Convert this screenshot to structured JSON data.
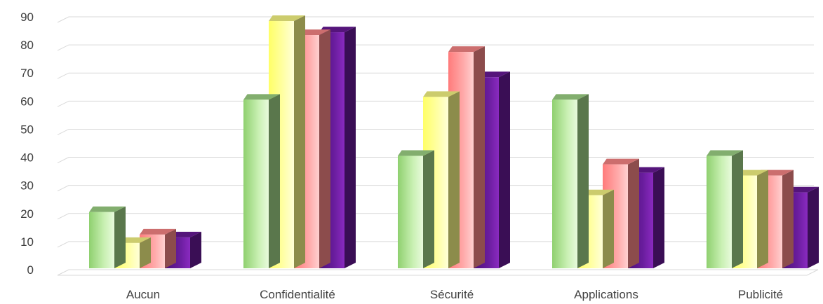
{
  "chart_data": {
    "type": "bar",
    "categories": [
      "Aucun",
      "Confidentialité",
      "Sécurité",
      "Applications",
      "Publicité"
    ],
    "series": [
      {
        "values": [
          20,
          60,
          40,
          60,
          40
        ],
        "color": "#a3d98a"
      },
      {
        "values": [
          9,
          88,
          61,
          26,
          33
        ],
        "color": "#ffff88"
      },
      {
        "values": [
          12,
          83,
          77,
          37,
          33
        ],
        "color": "#ff8a8a"
      },
      {
        "values": [
          11,
          84,
          68,
          34,
          27
        ],
        "color": "#6a1a9a"
      }
    ],
    "ylim": [
      0,
      90
    ],
    "yticks": [
      0,
      10,
      20,
      30,
      40,
      50,
      60,
      70,
      80,
      90
    ],
    "grid": true,
    "legend": "none",
    "style": "3d-column"
  }
}
